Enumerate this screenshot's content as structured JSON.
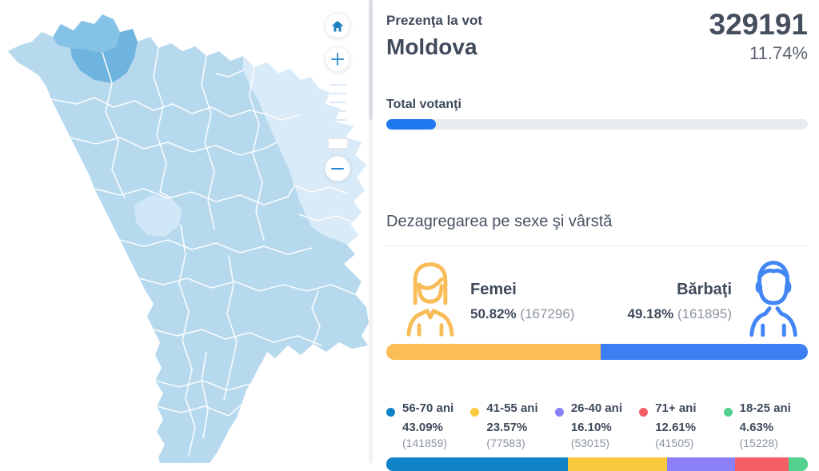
{
  "header": {
    "subtitle": "Prezenţa la vot",
    "title": "Moldova",
    "total_votes": "329191",
    "turnout_percent": "11.74%"
  },
  "progress": {
    "label": "Total votanţi",
    "percent_value": 11.74,
    "fill_color": "#1f78f0",
    "track_color": "#e9ecef"
  },
  "section": {
    "title": "Dezagregarea pe sexe şi vârstă"
  },
  "gender": {
    "female": {
      "label": "Femei",
      "percent": "50.82%",
      "count": "(167296)",
      "value": 50.82,
      "color": "#fbbd55"
    },
    "male": {
      "label": "Bărbaţi",
      "percent": "49.18%",
      "count": "(161895)",
      "value": 49.18,
      "color": "#3d7ef2"
    }
  },
  "age_groups": [
    {
      "label": "56-70 ani",
      "percent": "43.09%",
      "count": "(141859)",
      "value": 43.09,
      "color": "#0f83c6"
    },
    {
      "label": "41-55 ani",
      "percent": "23.57%",
      "count": "(77583)",
      "value": 23.57,
      "color": "#fbc93d"
    },
    {
      "label": "26-40 ani",
      "percent": "16.10%",
      "count": "(53015)",
      "value": 16.1,
      "color": "#8b80f8"
    },
    {
      "label": "71+ ani",
      "percent": "12.61%",
      "count": "(41505)",
      "value": 12.61,
      "color": "#f45f66"
    },
    {
      "label": "18-25 ani",
      "percent": "4.63%",
      "count": "(15228)",
      "value": 4.63,
      "color": "#53d18e"
    }
  ],
  "map": {
    "type": "choropleth",
    "country": "Moldova",
    "colors": {
      "base": "#b7d9ee",
      "light_strip": "#d9ebf8",
      "dark_north_1": "#85c3e6",
      "dark_north_2": "#6fb4de",
      "light_cell": "#cfe7f6",
      "border": "#ffffff"
    }
  },
  "controls": {
    "items": [
      "home",
      "zoom-in",
      "zoom-slider",
      "zoom-out"
    ],
    "icon_color": "#1b7fc0",
    "plus_color": "#3f97d6"
  }
}
